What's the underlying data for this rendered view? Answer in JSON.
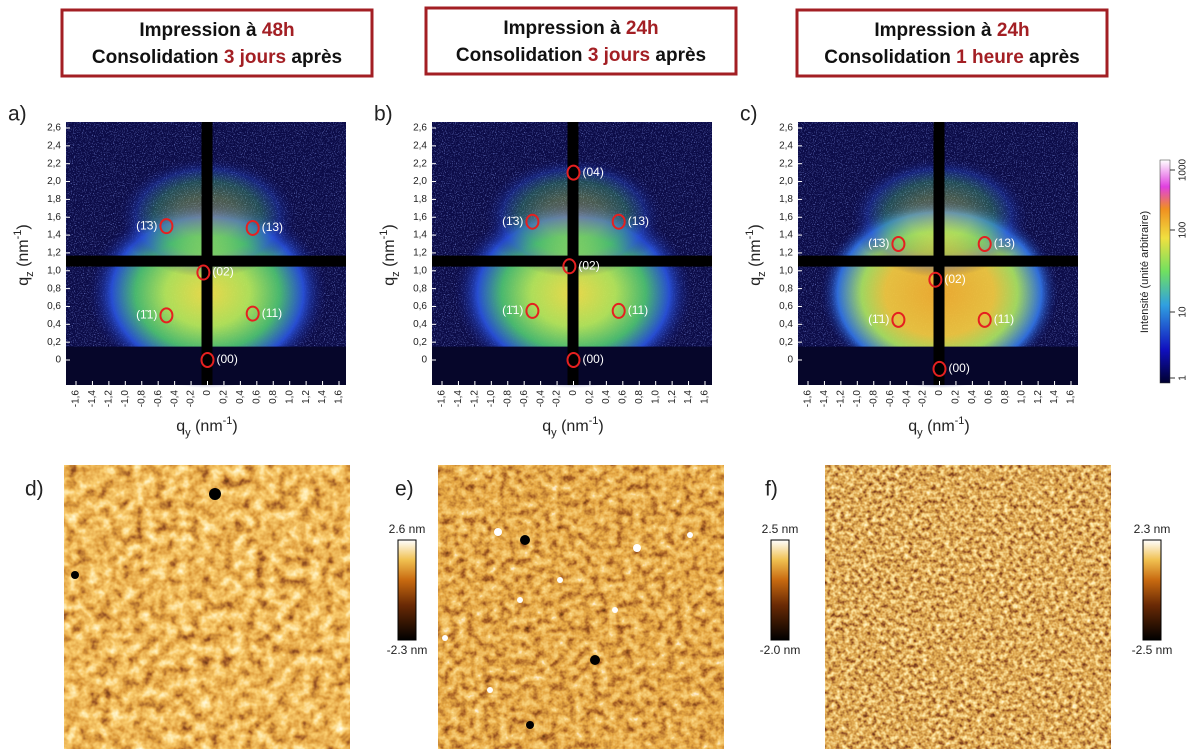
{
  "panels": [
    {
      "header": {
        "line1": "Impression à ",
        "line1_value": "48h",
        "line2": "Consolidation ",
        "line2_value": "3 jours",
        "line2_end": " après"
      },
      "label": "a)",
      "peaks": [
        "(1̄3)",
        "(13)",
        "(02)",
        "(1̄1)",
        "(11)",
        "(00)"
      ]
    },
    {
      "header": {
        "line1": "Impression à ",
        "line1_value": "24h",
        "line2": "Consolidation ",
        "line2_value": "3 jours",
        "line2_end": " après"
      },
      "label": "b)",
      "peaks": [
        "(04)",
        "(1̄3)",
        "(13)",
        "(02)",
        "(1̄1)",
        "(11)",
        "(00)"
      ]
    },
    {
      "header": {
        "line1": "Impression à ",
        "line1_value": "24h",
        "line2": "Consolidation ",
        "line2_value": "1 heure",
        "line2_end": " après"
      },
      "label": "c)",
      "peaks": [
        "(1̄3)",
        "(13)",
        "(02)",
        "(1̄1)",
        "(11)",
        "(00)"
      ]
    }
  ],
  "axes": {
    "y_label": {
      "symbol": "q",
      "subscript": "z",
      "unit": " (nm",
      "exponent": "-1",
      "close": ")"
    },
    "x_label": {
      "symbol": "q",
      "subscript": "y",
      "unit": " (nm",
      "exponent": "-1",
      "close": ")"
    },
    "y_ticks": [
      "2,6",
      "2,4",
      "2,2",
      "2,0",
      "1,8",
      "1,6",
      "1,4",
      "1,2",
      "1,0",
      "0,8",
      "0,6",
      "0,4",
      "0,2",
      "0"
    ],
    "x_ticks": [
      "-1,6",
      "-1,4",
      "-1,2",
      "-1,0",
      "-0,8",
      "-0,6",
      "-0,4",
      "-0,2",
      "0",
      "0,2",
      "0,4",
      "0,6",
      "0,8",
      "1,0",
      "1,2",
      "1,4",
      "1,6"
    ]
  },
  "intensity_scale": {
    "title": "Intensité (unité arbitraire)",
    "ticks": [
      "1000",
      "100",
      "10",
      "1"
    ]
  },
  "afm": [
    {
      "label": "d)",
      "max": "2.6 nm",
      "min": "-2.3 nm"
    },
    {
      "label": "e)",
      "max": "2.5 nm",
      "min": "-2.0 nm"
    },
    {
      "label": "f)",
      "max": "2.3 nm",
      "min": "-2.5 nm"
    }
  ]
}
